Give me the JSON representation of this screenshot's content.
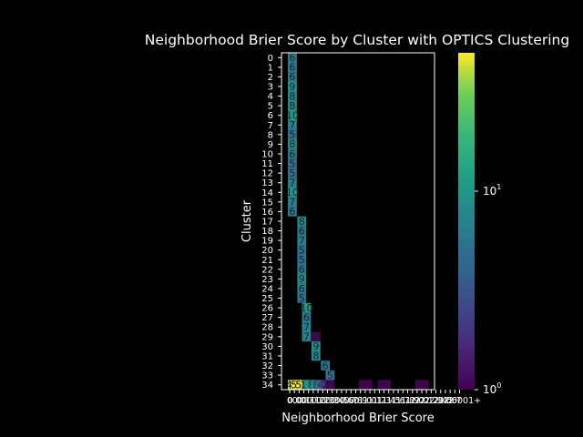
{
  "chart_data": {
    "type": "heatmap",
    "title": "Neighborhood Brier Score by Cluster with OPTICS Clustering",
    "xlabel": "Neighborhood Brier Score",
    "ylabel": "Cluster",
    "x_tick_labels": [
      "0",
      "0.0",
      "0.0",
      "0.1",
      "0.1",
      "0.1",
      "0.2",
      "0.2",
      "0.3",
      "0.3",
      "0.4",
      "0.5",
      "0.6",
      "0.7",
      "0.8",
      "0.9",
      "1.0",
      "1.0",
      "1.1",
      "1.2",
      "1.3",
      "1.4",
      "1.5",
      "1.6",
      "1.7",
      "1.8",
      "1.9",
      "2.0",
      "2.0",
      "2.1",
      "2.2",
      "2.3",
      "2.4",
      "2.5",
      "2.6",
      "2.7",
      "0.00001+"
    ],
    "x_tick_labels_note": "",
    "row_labels": [
      "0",
      "1",
      "2",
      "3",
      "4",
      "5",
      "6",
      "7",
      "8",
      "9",
      "10",
      "11",
      "12",
      "13",
      "14",
      "15",
      "16",
      "17",
      "18",
      "19",
      "20",
      "21",
      "22",
      "23",
      "24",
      "25",
      "26",
      "27",
      "28",
      "29",
      "30",
      "31",
      "32",
      "33",
      "34"
    ],
    "colorbar": {
      "scale": "log",
      "min": 1,
      "max": 50,
      "tick_labels": [
        "10^0",
        "10^1"
      ]
    },
    "ncols": 36,
    "cells": [
      {
        "row": 0,
        "col": 0,
        "value": 6
      },
      {
        "row": 1,
        "col": 0,
        "value": 6
      },
      {
        "row": 2,
        "col": 0,
        "value": 6
      },
      {
        "row": 3,
        "col": 0,
        "value": 9
      },
      {
        "row": 4,
        "col": 0,
        "value": 8
      },
      {
        "row": 5,
        "col": 0,
        "value": 8
      },
      {
        "row": 6,
        "col": 0,
        "value": 10
      },
      {
        "row": 7,
        "col": 0,
        "value": 7
      },
      {
        "row": 8,
        "col": 0,
        "value": 5
      },
      {
        "row": 9,
        "col": 0,
        "value": 8
      },
      {
        "row": 10,
        "col": 0,
        "value": 6
      },
      {
        "row": 11,
        "col": 0,
        "value": 5
      },
      {
        "row": 12,
        "col": 0,
        "value": 5
      },
      {
        "row": 13,
        "col": 0,
        "value": 7
      },
      {
        "row": 14,
        "col": 0,
        "value": 10
      },
      {
        "row": 15,
        "col": 0,
        "value": 7
      },
      {
        "row": 16,
        "col": 0,
        "value": 6
      },
      {
        "row": 17,
        "col": 2,
        "value": 8
      },
      {
        "row": 18,
        "col": 2,
        "value": 6
      },
      {
        "row": 19,
        "col": 2,
        "value": 7
      },
      {
        "row": 20,
        "col": 2,
        "value": 5
      },
      {
        "row": 21,
        "col": 2,
        "value": 5
      },
      {
        "row": 22,
        "col": 2,
        "value": 6
      },
      {
        "row": 23,
        "col": 2,
        "value": 9
      },
      {
        "row": 24,
        "col": 2,
        "value": 6
      },
      {
        "row": 25,
        "col": 2,
        "value": 5
      },
      {
        "row": 26,
        "col": 3,
        "value": 10
      },
      {
        "row": 27,
        "col": 3,
        "value": 6
      },
      {
        "row": 28,
        "col": 3,
        "value": 7
      },
      {
        "row": 29,
        "col": 3,
        "value": 7
      },
      {
        "row": 29,
        "col": 5,
        "value": 1
      },
      {
        "row": 30,
        "col": 5,
        "value": 9
      },
      {
        "row": 31,
        "col": 5,
        "value": 8
      },
      {
        "row": 32,
        "col": 7,
        "value": 6
      },
      {
        "row": 33,
        "col": 8,
        "value": 5
      },
      {
        "row": 34,
        "col": 0,
        "value": 43
      },
      {
        "row": 34,
        "col": 1,
        "value": 50
      },
      {
        "row": 34,
        "col": 2,
        "value": 50
      },
      {
        "row": 34,
        "col": 3,
        "value": 10
      },
      {
        "row": 34,
        "col": 4,
        "value": 8
      },
      {
        "row": 34,
        "col": 5,
        "value": 8
      },
      {
        "row": 34,
        "col": 6,
        "value": 4
      },
      {
        "row": 34,
        "col": 7,
        "value": 2
      },
      {
        "row": 34,
        "col": 8,
        "value": 1
      },
      {
        "row": 34,
        "col": 15,
        "value": 1
      },
      {
        "row": 34,
        "col": 16,
        "value": 1
      },
      {
        "row": 34,
        "col": 19,
        "value": 1
      },
      {
        "row": 34,
        "col": 20,
        "value": 1
      },
      {
        "row": 34,
        "col": 27,
        "value": 1
      },
      {
        "row": 34,
        "col": 28,
        "value": 1
      }
    ]
  }
}
